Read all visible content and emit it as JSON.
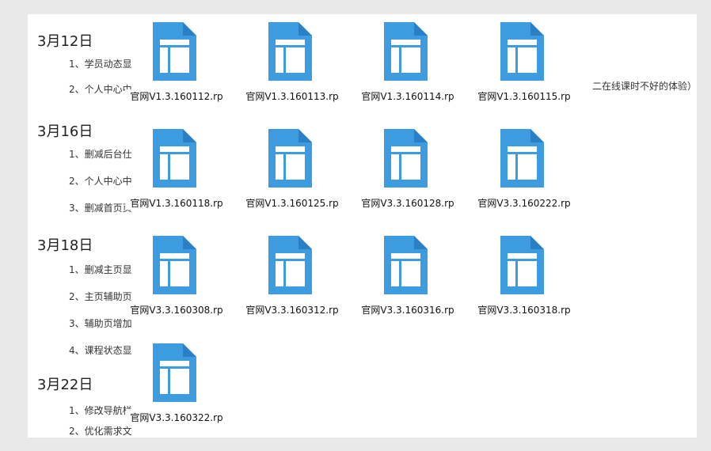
{
  "notes": {
    "sections": [
      {
        "date": "3月12日",
        "items": [
          "1、学员动态显",
          "2、个人中心中"
        ]
      },
      {
        "date": "3月16日",
        "items": [
          "1、删减后台仕",
          "2、个人中心中",
          "3、删减首页页"
        ]
      },
      {
        "date": "3月18日",
        "items": [
          "1、删减主页显",
          "2、主页辅助页",
          "3、辅助页增加",
          "4、课程状态显"
        ]
      },
      {
        "date": "3月22日",
        "items": [
          "1、修改导航栏",
          "2、优化需求文"
        ]
      }
    ],
    "visible_suffix": "二在线课时不好的体验）"
  },
  "files": [
    {
      "name": "官网V1.3.160112.rp",
      "icon": "axure-rp-file-icon"
    },
    {
      "name": "官网V1.3.160113.rp",
      "icon": "axure-rp-file-icon"
    },
    {
      "name": "官网V1.3.160114.rp",
      "icon": "axure-rp-file-icon"
    },
    {
      "name": "官网V1.3.160115.rp",
      "icon": "axure-rp-file-icon"
    },
    {
      "name": "官网V1.3.160118.rp",
      "icon": "axure-rp-file-icon"
    },
    {
      "name": "官网V1.3.160125.rp",
      "icon": "axure-rp-file-icon"
    },
    {
      "name": "官网V3.3.160128.rp",
      "icon": "axure-rp-file-icon"
    },
    {
      "name": "官网V3.3.160222.rp",
      "icon": "axure-rp-file-icon"
    },
    {
      "name": "官网V3.3.160308.rp",
      "icon": "axure-rp-file-icon"
    },
    {
      "name": "官网V3.3.160312.rp",
      "icon": "axure-rp-file-icon"
    },
    {
      "name": "官网V3.3.160316.rp",
      "icon": "axure-rp-file-icon"
    },
    {
      "name": "官网V3.3.160318.rp",
      "icon": "axure-rp-file-icon"
    },
    {
      "name": "官网V3.3.160322.rp",
      "icon": "axure-rp-file-icon"
    }
  ],
  "colors": {
    "icon_blue": "#3d9be0",
    "icon_fold": "#2b7fc4",
    "icon_white": "#ffffff",
    "background": "#e9e9e9"
  }
}
